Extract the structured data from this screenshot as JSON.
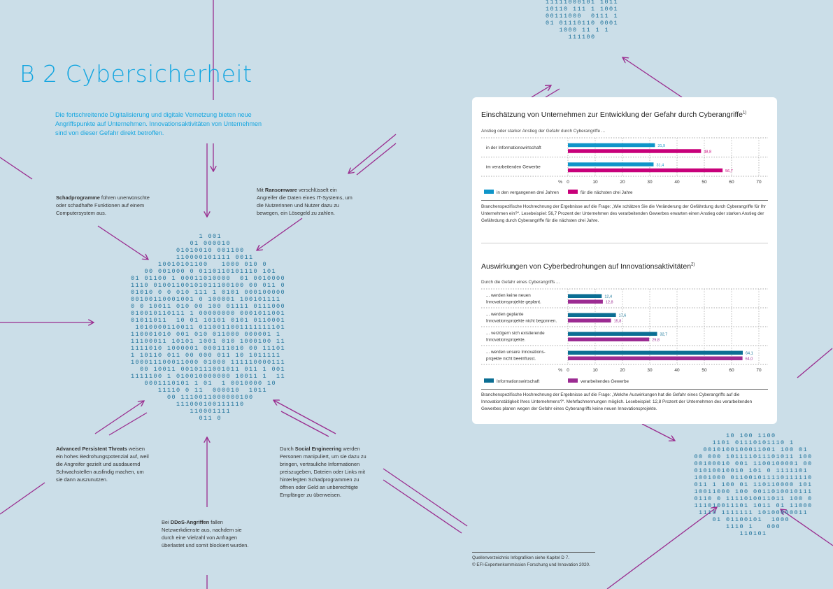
{
  "page": {
    "title": "B 2 Cybersicherheit",
    "intro": "Die fortschreitende Digitalisierung und digitale Vernetzung bieten neue Angriffspunkte auf Unternehmen. Innovationsaktivitäten von Unternehmen sind von dieser Gefahr direkt betroffen.",
    "notes": {
      "malware": {
        "bold": "Schadprogramme",
        "text": " führen unerwünschte oder schadhafte Funktionen auf einem Computersystem aus."
      },
      "ransomware": {
        "pre": "Mit ",
        "bold": "Ransomware",
        "text": " verschlüsselt ein Angreifer die Daten eines IT-Systems, um die Nutzerinnen und Nutzer dazu zu bewegen, ein Lösegeld zu zahlen."
      },
      "apt": {
        "bold": "Advanced Persistent Threats",
        "text": " weisen ein hohes Bedrohungspotenzial auf, weil die Angreifer gezielt und ausdauernd Schwachstellen ausfindig machen, um sie dann auszunutzen."
      },
      "social": {
        "pre": "Durch ",
        "bold": "Social Engineering",
        "text": " werden Personen manipuliert, um sie dazu zu bringen, vertrauliche Informationen preiszugeben, Dateien oder Links mit hinterlegten Schadprogrammen zu öffnen oder Geld an unberechtigte Empfänger zu überweisen."
      },
      "ddos": {
        "pre": "Bei ",
        "bold": "DDoS-Angriffen",
        "text": " fallen Netzwerkdienste aus, nachdem sie durch eine Vielzahl von Anfragen überlastet und somit blockiert wurden."
      }
    },
    "source_line1": "Quellenverzeichnis Infografiken siehe Kapitel D 7.",
    "source_line2": "© EFI-Expertenkommission Forschung und Innovation 2020.",
    "colors": {
      "background": "#cbdee8",
      "accent": "#15a6e0",
      "arrow": "#9a2d8f",
      "binary": "#1a6f98"
    }
  },
  "chart_data": [
    {
      "type": "bar",
      "title": "Einschätzung von Unternehmen zur Entwicklung der Gefahr durch Cyberangriffe",
      "footnote": "1)",
      "subtitle": "Anstieg oder starker Anstieg der Gefahr durch Cyberangriffe ...",
      "categories": [
        "in der Informationswirtschaft",
        "im verarbeitenden Gewerbe"
      ],
      "series": [
        {
          "name": "in den vergangenen drei Jahren",
          "color": "#0f95c9",
          "values": [
            31.9,
            31.4
          ],
          "labels": [
            "31,9",
            "31,4"
          ]
        },
        {
          "name": "für die nächsten drei Jahre",
          "color": "#c8007a",
          "values": [
            48.8,
            56.7
          ],
          "labels": [
            "48,8",
            "56,7"
          ]
        }
      ],
      "xlabel": "%",
      "xlim": [
        0,
        70
      ],
      "xticks": [
        "0",
        "10",
        "20",
        "30",
        "40",
        "50",
        "60",
        "70"
      ],
      "legend": "bottom-left",
      "caption": "Branchenspezifische Hochrechnung der Ergebnisse auf die Frage: „Wie schätzen Sie die Veränderung der Gefährdung durch Cyberangriffe für Ihr Unternehmen ein?“. Lesebeispiel: 56,7 Prozent der Unternehmen des verarbeitenden Gewerbes erwarten einen Anstieg oder starken Anstieg der Gefährdung durch Cyberangriffe für die nächsten drei Jahre."
    },
    {
      "type": "bar",
      "title": "Auswirkungen von Cyberbedrohungen auf Innovationsaktivitäten",
      "footnote": "2)",
      "subtitle": "Durch die Gefahr eines Cyberangriffs ...",
      "categories": [
        [
          "... werden keine neuen",
          "Innovationsprojekte geplant."
        ],
        [
          "... werden geplante",
          "Innovationsprojekte nicht begonnen."
        ],
        [
          "... verzögern sich existierende",
          "Innovationsprojekte."
        ],
        [
          "... werden unsere Innovations-",
          "projekte nicht beeinflusst."
        ]
      ],
      "series": [
        {
          "name": "Informationswirtschaft",
          "color": "#0b6e93",
          "values": [
            12.4,
            17.6,
            32.7,
            64.1
          ],
          "labels": [
            "12,4",
            "17,6",
            "32,7",
            "64,1"
          ]
        },
        {
          "name": "verarbeitendes Gewerbe",
          "color": "#9c2b92",
          "values": [
            12.8,
            15.8,
            29.8,
            64.0
          ],
          "labels": [
            "12,8",
            "15,8",
            "29,8",
            "64,0"
          ]
        }
      ],
      "xlabel": "%",
      "xlim": [
        0,
        70
      ],
      "xticks": [
        "0",
        "10",
        "20",
        "30",
        "40",
        "50",
        "60",
        "70"
      ],
      "legend": "bottom-left",
      "caption": "Branchenspezifische Hochrechnung der Ergebnisse auf die Frage: „Welche Auswirkungen hat die Gefahr eines Cyberangriffs auf die Innovationstätigkeit Ihres Unternehmens?“. Mehrfachnennungen möglich. Lesebeispiel: 12,8 Prozent der Unternehmen des verarbeitenden Gewerbes planen wegen der Gefahr eines Cyberangriffs keine neuen Innovationsprojekte."
    }
  ]
}
